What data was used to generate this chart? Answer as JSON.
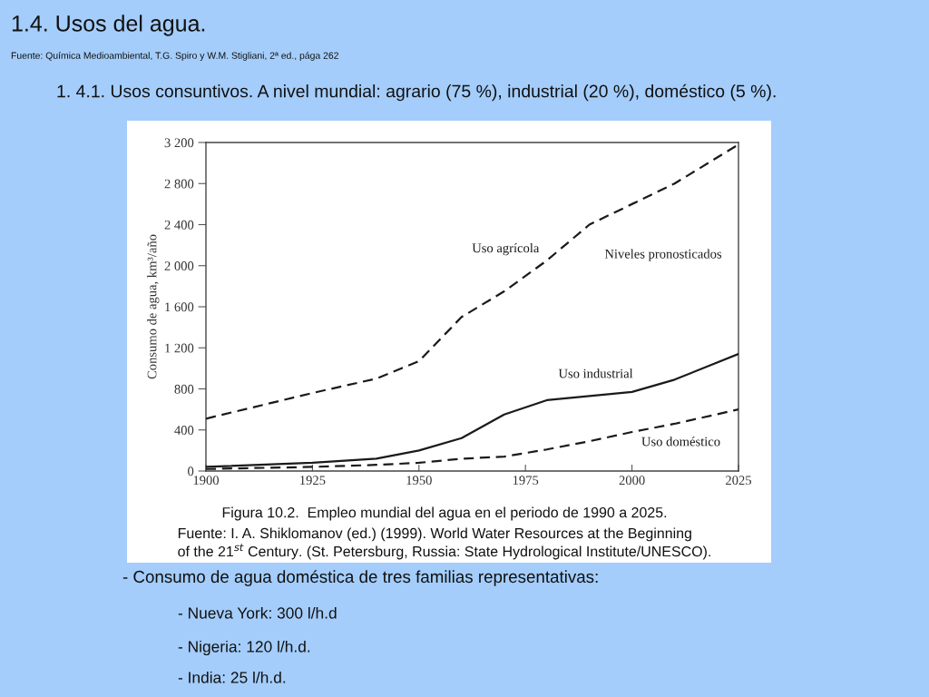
{
  "chart_data": {
    "type": "line",
    "title": "1.4. Usos del agua.",
    "subtitle": "Fuente: Química Medioambiental, T.G. Spiro y W.M. Stigliani, 2ª ed., pága 262",
    "ylabel": "Consumo de agua, km³/año",
    "x": [
      1900,
      1925,
      1940,
      1950,
      1960,
      1970,
      1980,
      1990,
      2000,
      2010,
      2025
    ],
    "series": [
      {
        "name": "Uso agrícola",
        "color": "#1a1a1a",
        "line_style": "dashed",
        "values": [
          510,
          760,
          900,
          1070,
          1500,
          1750,
          2050,
          2400,
          2600,
          2800,
          3180
        ]
      },
      {
        "name": "Uso industrial",
        "color": "#1a1a1a",
        "line_style": "solid",
        "values": [
          40,
          80,
          120,
          200,
          320,
          550,
          690,
          730,
          770,
          890,
          1140
        ]
      },
      {
        "name": "Uso doméstico",
        "color": "#1a1a1a",
        "line_style": "dashed",
        "values": [
          20,
          40,
          60,
          80,
          120,
          140,
          210,
          290,
          380,
          460,
          600
        ]
      }
    ],
    "xlim": [
      1900,
      2025
    ],
    "xticks": [
      1900,
      1925,
      1950,
      1975,
      2000,
      2025
    ],
    "ylim": [
      0,
      3200
    ],
    "yticks": [
      0,
      400,
      800,
      {
        "value": 1200,
        "label": "1 200"
      },
      {
        "value": 1600,
        "label": "1 600"
      },
      {
        "value": 2000,
        "label": "2 000"
      },
      {
        "value": 2400,
        "label": "2 400"
      },
      {
        "value": 2800,
        "label": "2 800"
      },
      {
        "value": 3200,
        "label": "3 200"
      }
    ],
    "grid": false,
    "legend": false,
    "marker": "none",
    "annotations": [
      "1. 4.1. Usos consuntivos. A nivel mundial: agrario (75 %), industrial (20 %), doméstico (5 %).",
      "Niveles pronosticados",
      "Figura 10.2.  Empleo mundial del agua en el periodo de 1990 a 2025.",
      "Fuente: I. A. Shiklomanov (ed.) (1999). World Water Resources at the Beginning\nof the 21$^{st}$ Century. (St. Petersburg, Russia: State Hydrological Institute/UNESCO).",
      "- Consumo de agua doméstica de tres familias representativas:",
      "- Nueva York: 300 l/h.d",
      "- Nigeria: 120 l/h.d.",
      "- India: 25 l/h.d."
    ]
  }
}
